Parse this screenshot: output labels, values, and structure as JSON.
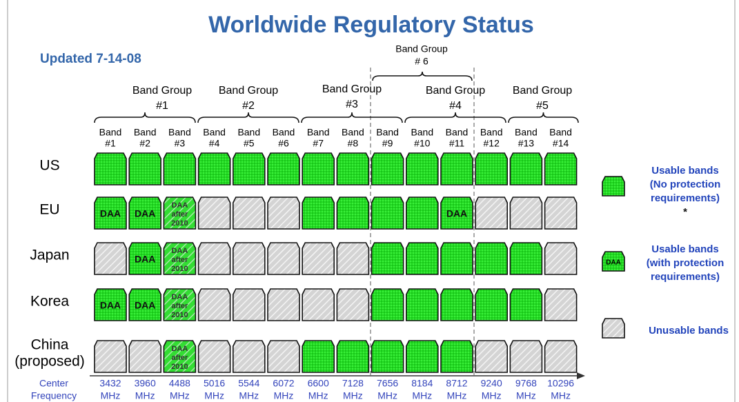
{
  "title": "Worldwide Regulatory Status",
  "updated": "Updated 7-14-08",
  "band_groups": [
    {
      "name": "Band Group",
      "number": "#1"
    },
    {
      "name": "Band Group",
      "number": "#2"
    },
    {
      "name": "Band Group",
      "number": "#3"
    },
    {
      "name": "Band Group",
      "number": "#4"
    },
    {
      "name": "Band Group",
      "number": "#5"
    },
    {
      "name": "Band Group",
      "number": "# 6"
    }
  ],
  "frequency_label": [
    "Center",
    "Frequency"
  ],
  "bands": [
    {
      "name": "Band",
      "number": "#1",
      "freq": "3432",
      "unit": "MHz"
    },
    {
      "name": "Band",
      "number": "#2",
      "freq": "3960",
      "unit": "MHz"
    },
    {
      "name": "Band",
      "number": "#3",
      "freq": "4488",
      "unit": "MHz"
    },
    {
      "name": "Band",
      "number": "#4",
      "freq": "5016",
      "unit": "MHz"
    },
    {
      "name": "Band",
      "number": "#5",
      "freq": "5544",
      "unit": "MHz"
    },
    {
      "name": "Band",
      "number": "#6",
      "freq": "6072",
      "unit": "MHz"
    },
    {
      "name": "Band",
      "number": "#7",
      "freq": "6600",
      "unit": "MHz"
    },
    {
      "name": "Band",
      "number": "#8",
      "freq": "7128",
      "unit": "MHz"
    },
    {
      "name": "Band",
      "number": "#9",
      "freq": "7656",
      "unit": "MHz"
    },
    {
      "name": "Band",
      "number": "#10",
      "freq": "8184",
      "unit": "MHz"
    },
    {
      "name": "Band",
      "number": "#11",
      "freq": "8712",
      "unit": "MHz"
    },
    {
      "name": "Band",
      "number": "#12",
      "freq": "9240",
      "unit": "MHz"
    },
    {
      "name": "Band",
      "number": "#13",
      "freq": "9768",
      "unit": "MHz"
    },
    {
      "name": "Band",
      "number": "#14",
      "freq": "10296",
      "unit": "MHz"
    }
  ],
  "regions": [
    {
      "name": [
        "US"
      ],
      "cells": [
        {
          "status": "usable"
        },
        {
          "status": "usable"
        },
        {
          "status": "usable"
        },
        {
          "status": "usable"
        },
        {
          "status": "usable"
        },
        {
          "status": "usable"
        },
        {
          "status": "usable"
        },
        {
          "status": "usable"
        },
        {
          "status": "usable"
        },
        {
          "status": "usable"
        },
        {
          "status": "usable"
        },
        {
          "status": "usable"
        },
        {
          "status": "usable"
        },
        {
          "status": "usable"
        }
      ]
    },
    {
      "name": [
        "EU"
      ],
      "cells": [
        {
          "status": "daa",
          "text": [
            "DAA"
          ]
        },
        {
          "status": "daa",
          "text": [
            "DAA"
          ]
        },
        {
          "status": "daa-later",
          "text": [
            "DAA",
            "after",
            "2010"
          ]
        },
        {
          "status": "unusable"
        },
        {
          "status": "unusable"
        },
        {
          "status": "unusable"
        },
        {
          "status": "usable"
        },
        {
          "status": "usable"
        },
        {
          "status": "usable"
        },
        {
          "status": "usable"
        },
        {
          "status": "daa",
          "text": [
            "DAA"
          ]
        },
        {
          "status": "unusable"
        },
        {
          "status": "unusable"
        },
        {
          "status": "unusable"
        }
      ]
    },
    {
      "name": [
        "Japan"
      ],
      "cells": [
        {
          "status": "unusable"
        },
        {
          "status": "daa",
          "text": [
            "DAA"
          ]
        },
        {
          "status": "daa-later",
          "text": [
            "DAA",
            "after",
            "2010"
          ]
        },
        {
          "status": "unusable"
        },
        {
          "status": "unusable"
        },
        {
          "status": "unusable"
        },
        {
          "status": "unusable"
        },
        {
          "status": "unusable"
        },
        {
          "status": "usable"
        },
        {
          "status": "usable"
        },
        {
          "status": "usable"
        },
        {
          "status": "usable"
        },
        {
          "status": "usable"
        },
        {
          "status": "unusable"
        }
      ]
    },
    {
      "name": [
        "Korea"
      ],
      "cells": [
        {
          "status": "daa",
          "text": [
            "DAA"
          ]
        },
        {
          "status": "daa",
          "text": [
            "DAA"
          ]
        },
        {
          "status": "daa-later",
          "text": [
            "DAA",
            "after",
            "2010"
          ]
        },
        {
          "status": "unusable"
        },
        {
          "status": "unusable"
        },
        {
          "status": "unusable"
        },
        {
          "status": "unusable"
        },
        {
          "status": "unusable"
        },
        {
          "status": "usable"
        },
        {
          "status": "usable"
        },
        {
          "status": "usable"
        },
        {
          "status": "usable"
        },
        {
          "status": "usable"
        },
        {
          "status": "unusable"
        }
      ]
    },
    {
      "name": [
        "China",
        "(proposed)"
      ],
      "cells": [
        {
          "status": "unusable"
        },
        {
          "status": "unusable"
        },
        {
          "status": "daa-later",
          "text": [
            "DAA",
            "after",
            "2010"
          ]
        },
        {
          "status": "unusable"
        },
        {
          "status": "unusable"
        },
        {
          "status": "unusable"
        },
        {
          "status": "usable"
        },
        {
          "status": "usable"
        },
        {
          "status": "usable"
        },
        {
          "status": "usable"
        },
        {
          "status": "usable"
        },
        {
          "status": "unusable"
        },
        {
          "status": "unusable"
        },
        {
          "status": "unusable"
        }
      ]
    }
  ],
  "legend": [
    {
      "status": "usable",
      "lines": [
        "Usable bands",
        "(No protection",
        "requirements)",
        "*"
      ]
    },
    {
      "status": "daa",
      "icon_text": "DAA",
      "lines": [
        "Usable bands",
        "(with protection",
        "requirements)"
      ]
    },
    {
      "status": "unusable",
      "lines": [
        "Unusable bands"
      ]
    }
  ]
}
